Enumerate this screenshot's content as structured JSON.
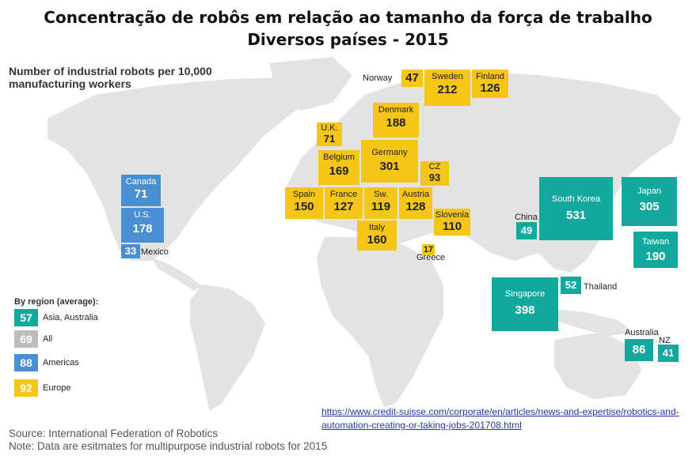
{
  "title_line1": "Concentração de robôs em relação ao tamanho da força de trabalho",
  "title_line2": "Diversos países - 2015",
  "subtitle": "Number of industrial robots per 10,000 manufacturing workers",
  "colors": {
    "europe": "#f5c518",
    "asia": "#13a89e",
    "americas": "#4a8fd1",
    "all": "#bdbdbd",
    "land": "#e3e3e3"
  },
  "countries": {
    "norway": {
      "name": "Norway",
      "value": "47"
    },
    "sweden": {
      "name": "Sweden",
      "value": "212"
    },
    "finland": {
      "name": "Finland",
      "value": "126"
    },
    "denmark": {
      "name": "Denmark",
      "value": "188"
    },
    "uk": {
      "name": "U.K.",
      "value": "71"
    },
    "germany": {
      "name": "Germany",
      "value": "301"
    },
    "belgium": {
      "name": "Belgium",
      "value": "169"
    },
    "cz": {
      "name": "CZ",
      "value": "93"
    },
    "spain": {
      "name": "Spain",
      "value": "150"
    },
    "france": {
      "name": "France",
      "value": "127"
    },
    "sw": {
      "name": "Sw.",
      "value": "119"
    },
    "austria": {
      "name": "Austria",
      "value": "128"
    },
    "slovenia": {
      "name": "Slovenia",
      "value": "110"
    },
    "italy": {
      "name": "Italy",
      "value": "160"
    },
    "greece": {
      "name": "Greece",
      "value": "17"
    },
    "canada": {
      "name": "Canada",
      "value": "71"
    },
    "us": {
      "name": "U.S.",
      "value": "178"
    },
    "mexico": {
      "name": "Mexico",
      "value": "33"
    },
    "china": {
      "name": "China",
      "value": "49"
    },
    "south_korea": {
      "name": "South Korea",
      "value": "531"
    },
    "japan": {
      "name": "Japan",
      "value": "305"
    },
    "taiwan": {
      "name": "Taiwan",
      "value": "190"
    },
    "thailand": {
      "name": "Thailand",
      "value": "52"
    },
    "singapore": {
      "name": "Singapore",
      "value": "398"
    },
    "australia": {
      "name": "Australia",
      "value": "86"
    },
    "nz": {
      "name": "NZ",
      "value": "41"
    }
  },
  "legend": {
    "title": "By region (average):",
    "items": [
      {
        "value": "57",
        "label": "Asia, Australia"
      },
      {
        "value": "69",
        "label": "All"
      },
      {
        "value": "88",
        "label": "Americas"
      },
      {
        "value": "92",
        "label": "Europe"
      }
    ]
  },
  "source": "Source: International Federation of Robotics",
  "note": "Note: Data are esitmates for multipurpose industrial robots for 2015",
  "link": "https://www.credit-suisse.com/corporate/en/articles/news-and-expertise/robotics-and-automation-creating-or-taking-jobs-201708.html"
}
